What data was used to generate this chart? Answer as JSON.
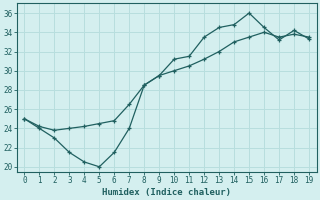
{
  "xlabel": "Humidex (Indice chaleur)",
  "background_color": "#d4efef",
  "grid_color": "#b8dede",
  "line_color": "#206060",
  "xlim": [
    -0.5,
    19.5
  ],
  "ylim": [
    19.5,
    37
  ],
  "yticks": [
    20,
    22,
    24,
    26,
    28,
    30,
    32,
    34,
    36
  ],
  "xticks": [
    0,
    1,
    2,
    3,
    4,
    5,
    6,
    7,
    8,
    9,
    10,
    11,
    12,
    13,
    14,
    15,
    16,
    17,
    18,
    19
  ],
  "zigzag_x": [
    0,
    1,
    2,
    3,
    4,
    5,
    6,
    7,
    8,
    9,
    10,
    11,
    12,
    13,
    14,
    15,
    16,
    17,
    18,
    19
  ],
  "zigzag_y": [
    25.0,
    24.0,
    23.0,
    21.5,
    20.5,
    20.0,
    21.5,
    24.0,
    28.5,
    29.5,
    31.2,
    31.5,
    33.5,
    34.5,
    34.8,
    36.0,
    34.5,
    33.2,
    34.2,
    33.3
  ],
  "trend_x": [
    0,
    1,
    2,
    3,
    4,
    5,
    6,
    7,
    8,
    9,
    10,
    11,
    12,
    13,
    14,
    15,
    16,
    17,
    18,
    19
  ],
  "trend_y": [
    25.0,
    24.2,
    23.8,
    24.0,
    24.2,
    24.5,
    24.8,
    26.5,
    28.5,
    29.5,
    30.0,
    30.5,
    31.2,
    32.0,
    33.0,
    33.5,
    34.0,
    33.5,
    33.8,
    33.5
  ]
}
